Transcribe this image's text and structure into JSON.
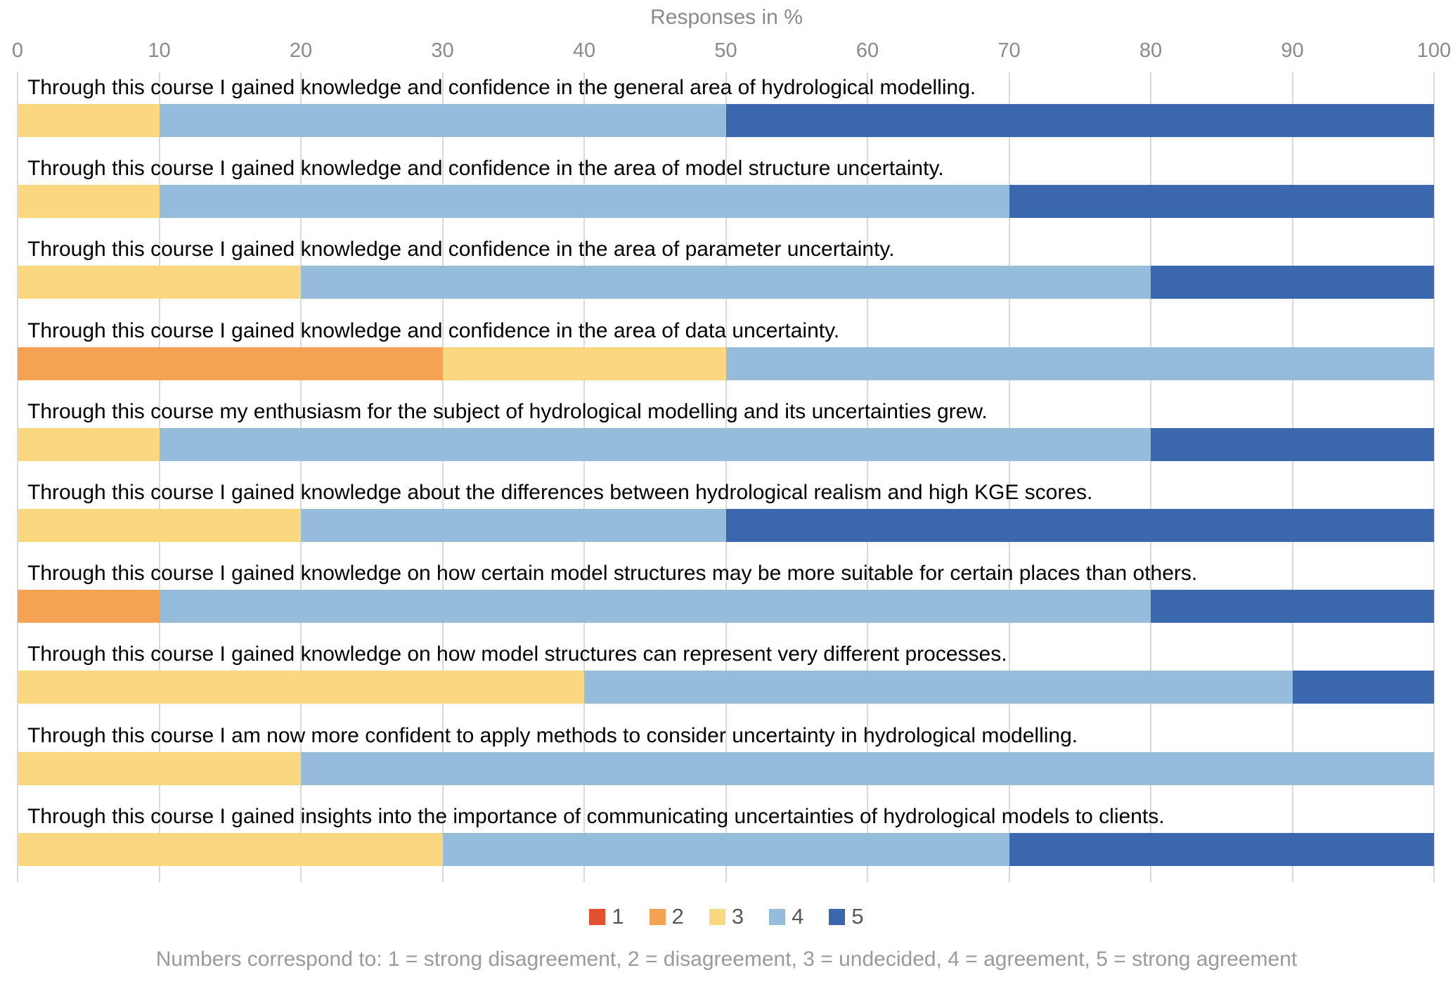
{
  "chart_data": {
    "type": "bar",
    "variant": "horizontal-stacked-100",
    "title": "Responses in %",
    "x_axis": {
      "min": 0,
      "max": 100,
      "ticks": [
        0,
        10,
        20,
        30,
        40,
        50,
        60,
        70,
        80,
        90,
        100
      ]
    },
    "grid": true,
    "legend_position": "bottom",
    "legend_keys": [
      "1",
      "2",
      "3",
      "4",
      "5"
    ],
    "colors": {
      "1": "#E2502D",
      "2": "#F5A255",
      "3": "#FBD87F",
      "4": "#95BCDB",
      "5": "#3A67AD"
    },
    "gridline_color": "#D9D9D9",
    "footnote": "Numbers correspond to: 1 = strong disagreement, 2 = disagreement, 3 = undecided, 4 = agreement, 5 = strong agreement",
    "rows": [
      {
        "label": "Through this course I gained knowledge and confidence in the general area of hydrological modelling.",
        "segments": [
          {
            "key": "3",
            "value": 10
          },
          {
            "key": "4",
            "value": 40
          },
          {
            "key": "5",
            "value": 50
          }
        ]
      },
      {
        "label": "Through this course I gained knowledge and confidence in the area of model structure uncertainty.",
        "segments": [
          {
            "key": "3",
            "value": 10
          },
          {
            "key": "4",
            "value": 60
          },
          {
            "key": "5",
            "value": 30
          }
        ]
      },
      {
        "label": "Through this course I gained knowledge and confidence in the area of parameter uncertainty.",
        "segments": [
          {
            "key": "3",
            "value": 20
          },
          {
            "key": "4",
            "value": 60
          },
          {
            "key": "5",
            "value": 20
          }
        ]
      },
      {
        "label": "Through this course I gained knowledge and confidence in the area of data uncertainty.",
        "segments": [
          {
            "key": "2",
            "value": 30
          },
          {
            "key": "3",
            "value": 20
          },
          {
            "key": "4",
            "value": 50
          }
        ]
      },
      {
        "label": "Through this course my enthusiasm for the subject of hydrological modelling and its uncertainties grew.",
        "segments": [
          {
            "key": "3",
            "value": 10
          },
          {
            "key": "4",
            "value": 70
          },
          {
            "key": "5",
            "value": 20
          }
        ]
      },
      {
        "label": "Through this course I gained knowledge about the differences between hydrological realism and high KGE scores.",
        "segments": [
          {
            "key": "3",
            "value": 20
          },
          {
            "key": "4",
            "value": 30
          },
          {
            "key": "5",
            "value": 50
          }
        ]
      },
      {
        "label": "Through this course I gained knowledge on how certain model structures may be more suitable for certain places than others.",
        "segments": [
          {
            "key": "2",
            "value": 10
          },
          {
            "key": "4",
            "value": 70
          },
          {
            "key": "5",
            "value": 20
          }
        ]
      },
      {
        "label": "Through this course I gained knowledge on how model structures can represent very different processes.",
        "segments": [
          {
            "key": "3",
            "value": 40
          },
          {
            "key": "4",
            "value": 50
          },
          {
            "key": "5",
            "value": 10
          }
        ]
      },
      {
        "label": "Through this course I am now more confident to apply methods to consider uncertainty in hydrological modelling.",
        "segments": [
          {
            "key": "3",
            "value": 20
          },
          {
            "key": "4",
            "value": 80
          }
        ]
      },
      {
        "label": "Through this course I gained insights into the importance of communicating uncertainties of hydrological models to clients.",
        "segments": [
          {
            "key": "3",
            "value": 30
          },
          {
            "key": "4",
            "value": 40
          },
          {
            "key": "5",
            "value": 30
          }
        ]
      }
    ]
  }
}
